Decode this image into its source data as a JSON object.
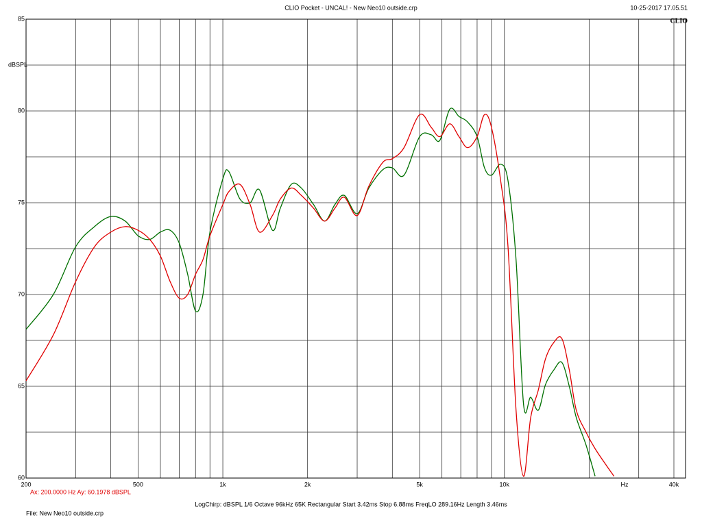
{
  "chart_data": {
    "type": "line",
    "title": "CLIO Pocket - UNCAL! - New Neo10 outside.crp",
    "timestamp": "10-25-2017 17.05.51",
    "brand": "CLIO",
    "y_label": "dBSPL",
    "x_label": "Hz",
    "cursor_text": "Ax: 200.0000 Hz  Ay: 60.1978 dBSPL",
    "settings_text": "LogChirp:  dBSPL   1/6 Octave   96kHz   65K   Rectangular   Start 3.42ms   Stop 6.88ms   FreqLO 289.16Hz   Length 3.46ms",
    "file_text": "File: New Neo10 outside.crp",
    "x_log": true,
    "xlim": [
      200,
      44000
    ],
    "ylim": [
      60,
      85
    ],
    "xticks": [
      200,
      500,
      {
        "value": 1000,
        "label": "1k"
      },
      {
        "value": 2000,
        "label": "2k"
      },
      {
        "value": 5000,
        "label": "5k"
      },
      {
        "value": 10000,
        "label": "10k"
      },
      {
        "value": 40000,
        "label": "40k"
      }
    ],
    "xminor": [
      300,
      400,
      600,
      700,
      800,
      900,
      3000,
      4000,
      6000,
      7000,
      8000,
      9000,
      20000,
      30000
    ],
    "yticks": [
      60,
      65,
      70,
      75,
      80,
      85
    ],
    "yminor": [
      62.5,
      67.5,
      72.5,
      77.5,
      82.5
    ],
    "grid": true,
    "x": [
      200,
      250,
      300,
      350,
      400,
      450,
      500,
      550,
      600,
      650,
      700,
      750,
      800,
      850,
      900,
      1000,
      1050,
      1150,
      1250,
      1350,
      1500,
      1600,
      1750,
      1900,
      2100,
      2300,
      2500,
      2700,
      3000,
      3300,
      3700,
      4000,
      4400,
      5000,
      5500,
      5900,
      6400,
      6900,
      7400,
      8000,
      8500,
      9000,
      9700,
      10300,
      11000,
      11700,
      12400,
      13200,
      14000,
      15000,
      16000,
      17000,
      18000,
      19500,
      21000,
      23000,
      24500
    ],
    "series": [
      {
        "name": "green",
        "color": "#007000",
        "values": [
          68.1,
          70.0,
          72.6,
          73.7,
          74.25,
          74.0,
          73.2,
          73.0,
          73.4,
          73.5,
          72.8,
          71.1,
          69.1,
          70.0,
          73.4,
          76.3,
          76.7,
          75.2,
          75.0,
          75.7,
          73.5,
          74.7,
          76.0,
          75.8,
          74.9,
          74.0,
          74.9,
          75.4,
          74.4,
          75.8,
          76.8,
          76.9,
          76.5,
          78.6,
          78.7,
          78.4,
          80.1,
          79.7,
          79.4,
          78.6,
          76.9,
          76.5,
          77.1,
          76.2,
          71.9,
          64.0,
          64.4,
          63.7,
          65.1,
          65.9,
          66.3,
          65.0,
          63.3,
          61.8,
          60.1,
          null,
          null
        ]
      },
      {
        "name": "red",
        "color": "#e00000",
        "values": [
          65.3,
          67.8,
          70.7,
          72.6,
          73.4,
          73.7,
          73.5,
          73.0,
          72.1,
          70.7,
          69.8,
          70.0,
          71.1,
          71.9,
          73.2,
          74.9,
          75.6,
          76.0,
          74.9,
          73.4,
          74.3,
          75.2,
          75.8,
          75.4,
          74.7,
          74.0,
          74.7,
          75.3,
          74.3,
          75.9,
          77.2,
          77.4,
          78.0,
          79.8,
          79.1,
          78.6,
          79.3,
          78.6,
          78.0,
          78.6,
          79.8,
          79.1,
          76.2,
          72.6,
          63.7,
          60.1,
          63.3,
          64.8,
          66.5,
          67.4,
          67.6,
          65.9,
          63.7,
          62.5,
          61.6,
          60.7,
          60.1
        ]
      }
    ]
  }
}
